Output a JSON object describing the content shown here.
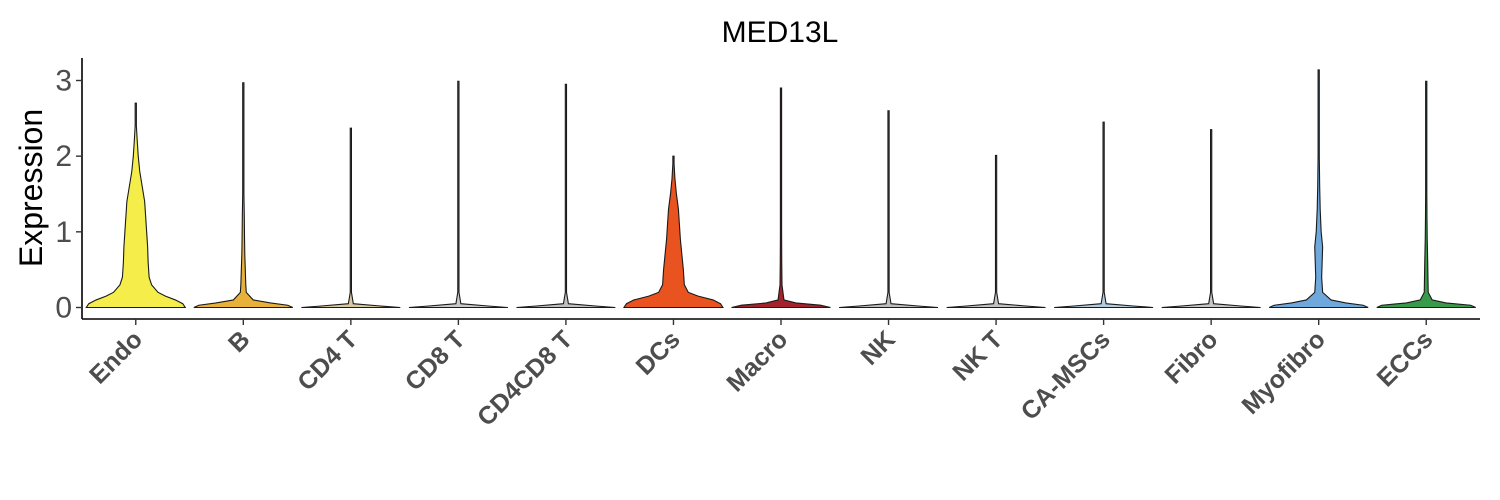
{
  "chart_data": {
    "type": "violin",
    "title": "MED13L",
    "xlabel": "",
    "ylabel": "Expression",
    "ylim": [
      0,
      3.2
    ],
    "yticks": [
      "0",
      "1",
      "2",
      "3"
    ],
    "legend": "none",
    "grid": false,
    "categories": [
      "Endo",
      "B",
      "CD4 T",
      "CD8 T",
      "CD4CD8 T",
      "DCs",
      "Macro",
      "NK",
      "NK T",
      "CA-MSCs",
      "Fibro",
      "Myofibro",
      "ECCs"
    ],
    "violins": [
      {
        "category": "Endo",
        "color": "#f5ee4a",
        "max": 2.7,
        "profile": [
          [
            0,
            1.0
          ],
          [
            0.05,
            0.95
          ],
          [
            0.1,
            0.8
          ],
          [
            0.15,
            0.6
          ],
          [
            0.2,
            0.45
          ],
          [
            0.3,
            0.32
          ],
          [
            0.4,
            0.27
          ],
          [
            0.6,
            0.25
          ],
          [
            0.8,
            0.24
          ],
          [
            1.0,
            0.22
          ],
          [
            1.2,
            0.2
          ],
          [
            1.4,
            0.18
          ],
          [
            1.6,
            0.13
          ],
          [
            1.8,
            0.08
          ],
          [
            2.0,
            0.05
          ],
          [
            2.2,
            0.03
          ],
          [
            2.4,
            0.01
          ],
          [
            2.7,
            0.004
          ]
        ]
      },
      {
        "category": "B",
        "color": "#e8b23a",
        "max": 2.97,
        "profile": [
          [
            0,
            1.0
          ],
          [
            0.03,
            0.9
          ],
          [
            0.06,
            0.55
          ],
          [
            0.1,
            0.2
          ],
          [
            0.2,
            0.06
          ],
          [
            0.3,
            0.05
          ],
          [
            0.5,
            0.04
          ],
          [
            0.7,
            0.03
          ],
          [
            0.9,
            0.025
          ],
          [
            1.2,
            0.02
          ],
          [
            1.5,
            0.01
          ],
          [
            2.0,
            0.004
          ],
          [
            2.97,
            0.003
          ]
        ]
      },
      {
        "category": "CD4 T",
        "color": "#d9c8a0",
        "max": 2.37,
        "profile": [
          [
            0,
            1.0
          ],
          [
            0.02,
            0.6
          ],
          [
            0.05,
            0.05
          ],
          [
            0.2,
            0.005
          ],
          [
            2.37,
            0.004
          ]
        ]
      },
      {
        "category": "CD8 T",
        "color": "#c9c9c9",
        "max": 2.99,
        "profile": [
          [
            0,
            1.0
          ],
          [
            0.02,
            0.6
          ],
          [
            0.05,
            0.05
          ],
          [
            0.2,
            0.005
          ],
          [
            2.99,
            0.004
          ]
        ]
      },
      {
        "category": "CD4CD8 T",
        "color": "#bfbfbf",
        "max": 2.95,
        "profile": [
          [
            0,
            1.0
          ],
          [
            0.02,
            0.6
          ],
          [
            0.05,
            0.05
          ],
          [
            0.2,
            0.005
          ],
          [
            2.95,
            0.004
          ]
        ]
      },
      {
        "category": "DCs",
        "color": "#e8531f",
        "max": 2.0,
        "profile": [
          [
            0,
            1.0
          ],
          [
            0.05,
            0.95
          ],
          [
            0.1,
            0.8
          ],
          [
            0.15,
            0.5
          ],
          [
            0.2,
            0.3
          ],
          [
            0.3,
            0.22
          ],
          [
            0.5,
            0.2
          ],
          [
            0.7,
            0.17
          ],
          [
            0.9,
            0.14
          ],
          [
            1.1,
            0.12
          ],
          [
            1.3,
            0.1
          ],
          [
            1.5,
            0.06
          ],
          [
            1.7,
            0.03
          ],
          [
            1.9,
            0.01
          ],
          [
            2.0,
            0.004
          ]
        ]
      },
      {
        "category": "Macro",
        "color": "#a3232b",
        "max": 2.9,
        "profile": [
          [
            0,
            1.0
          ],
          [
            0.03,
            0.8
          ],
          [
            0.06,
            0.3
          ],
          [
            0.1,
            0.06
          ],
          [
            0.3,
            0.02
          ],
          [
            0.6,
            0.015
          ],
          [
            1.0,
            0.01
          ],
          [
            1.5,
            0.005
          ],
          [
            2.9,
            0.003
          ]
        ]
      },
      {
        "category": "NK",
        "color": "#bdbdbd",
        "max": 2.6,
        "profile": [
          [
            0,
            1.0
          ],
          [
            0.02,
            0.6
          ],
          [
            0.05,
            0.05
          ],
          [
            0.2,
            0.005
          ],
          [
            2.6,
            0.004
          ]
        ]
      },
      {
        "category": "NK T",
        "color": "#c2c2c2",
        "max": 2.01,
        "profile": [
          [
            0,
            1.0
          ],
          [
            0.02,
            0.6
          ],
          [
            0.05,
            0.05
          ],
          [
            0.2,
            0.005
          ],
          [
            2.01,
            0.004
          ]
        ]
      },
      {
        "category": "CA-MSCs",
        "color": "#b3cce0",
        "max": 2.45,
        "profile": [
          [
            0,
            1.0
          ],
          [
            0.02,
            0.6
          ],
          [
            0.05,
            0.05
          ],
          [
            0.2,
            0.005
          ],
          [
            2.45,
            0.004
          ]
        ]
      },
      {
        "category": "Fibro",
        "color": "#c5c5c5",
        "max": 2.35,
        "profile": [
          [
            0,
            1.0
          ],
          [
            0.02,
            0.6
          ],
          [
            0.05,
            0.05
          ],
          [
            0.2,
            0.005
          ],
          [
            2.35,
            0.004
          ]
        ]
      },
      {
        "category": "Myofibro",
        "color": "#6fa8dc",
        "max": 3.14,
        "profile": [
          [
            0,
            1.0
          ],
          [
            0.03,
            0.9
          ],
          [
            0.06,
            0.55
          ],
          [
            0.1,
            0.25
          ],
          [
            0.2,
            0.08
          ],
          [
            0.4,
            0.06
          ],
          [
            0.6,
            0.07
          ],
          [
            0.8,
            0.08
          ],
          [
            1.0,
            0.05
          ],
          [
            1.3,
            0.03
          ],
          [
            1.6,
            0.02
          ],
          [
            2.0,
            0.008
          ],
          [
            3.14,
            0.003
          ]
        ]
      },
      {
        "category": "ECCs",
        "color": "#3a9a4b",
        "max": 2.99,
        "profile": [
          [
            0,
            1.0
          ],
          [
            0.03,
            0.9
          ],
          [
            0.06,
            0.4
          ],
          [
            0.1,
            0.12
          ],
          [
            0.2,
            0.04
          ],
          [
            0.4,
            0.035
          ],
          [
            0.6,
            0.03
          ],
          [
            0.9,
            0.02
          ],
          [
            1.2,
            0.015
          ],
          [
            1.5,
            0.01
          ],
          [
            2.0,
            0.004
          ],
          [
            2.99,
            0.003
          ]
        ]
      }
    ]
  }
}
